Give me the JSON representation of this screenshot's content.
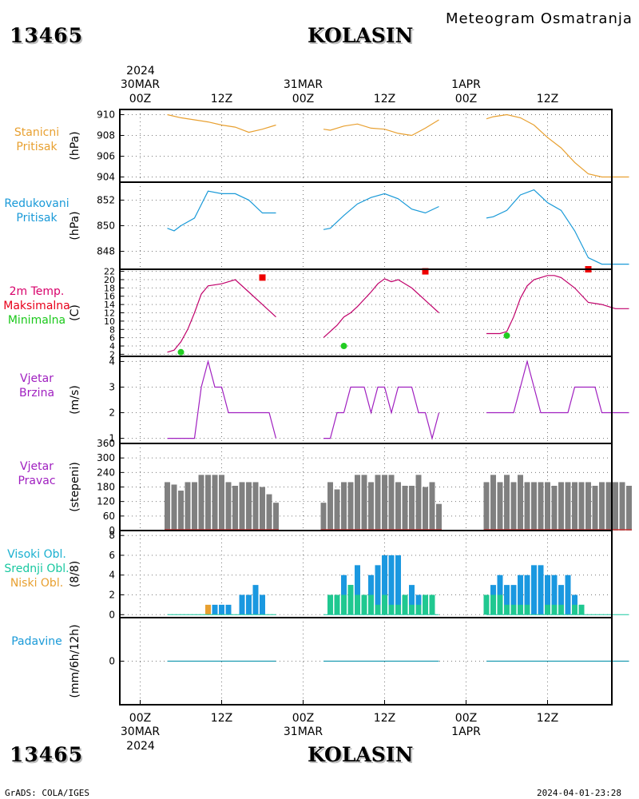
{
  "header": {
    "title": "Meteogram Osmatranja",
    "station_id": "13465",
    "station_name": "KOLASIN"
  },
  "footer": {
    "station_id": "13465",
    "station_name": "KOLASIN",
    "credit": "GrADS: COLA/IGES",
    "timestamp": "2024-04-01-23:28"
  },
  "time_axis": {
    "year": "2024",
    "days": [
      "30MAR",
      "31MAR",
      "1APR"
    ],
    "ticks": [
      "00Z",
      "12Z",
      "00Z",
      "12Z",
      "00Z",
      "12Z"
    ]
  },
  "chart_data": [
    {
      "id": "station-pressure",
      "type": "line",
      "label_lines": [
        "Stanicni",
        "Pritisak"
      ],
      "unit": "(hPa)",
      "color": "#e8a030",
      "ylim": [
        903.5,
        910.5
      ],
      "yticks": [
        "904",
        "906",
        "908",
        "910"
      ],
      "x_unit": "hours since 2024-03-30 00Z",
      "series": [
        {
          "x": [
            4,
            6,
            8,
            10,
            12,
            14,
            16,
            18,
            20
          ],
          "y": [
            910,
            909.7,
            909.5,
            909.3,
            909,
            908.8,
            908.3,
            908.6,
            909
          ]
        },
        {
          "x": [
            27,
            28,
            30,
            32,
            34,
            36,
            38,
            40,
            42,
            44
          ],
          "y": [
            908.6,
            908.5,
            908.9,
            909.1,
            908.7,
            908.6,
            908.2,
            908,
            908.7,
            909.5
          ]
        },
        {
          "x": [
            51,
            52,
            54,
            56,
            58,
            60,
            62,
            64,
            66,
            68,
            70,
            72
          ],
          "y": [
            909.6,
            909.8,
            910,
            909.7,
            909,
            907.8,
            906.8,
            905.4,
            904.3,
            904,
            904,
            904
          ]
        }
      ]
    },
    {
      "id": "reduced-pressure",
      "type": "line",
      "label_lines": [
        "Redukovani",
        "Pritisak"
      ],
      "unit": "(hPa)",
      "color": "#1a9ad8",
      "ylim": [
        846.6,
        853.4
      ],
      "yticks": [
        "848",
        "850",
        "852"
      ],
      "x_unit": "hours since 2024-03-30 00Z",
      "series": [
        {
          "x": [
            4,
            5,
            6,
            8,
            10,
            12,
            14,
            16,
            18,
            20
          ],
          "y": [
            849.8,
            849.6,
            850,
            850.6,
            852.7,
            852.5,
            852.5,
            852,
            851,
            851
          ]
        },
        {
          "x": [
            27,
            28,
            30,
            32,
            34,
            36,
            38,
            40,
            42,
            44
          ],
          "y": [
            849.7,
            849.8,
            850.8,
            851.7,
            852.2,
            852.5,
            852.1,
            851.3,
            851,
            851.5
          ]
        },
        {
          "x": [
            51,
            52,
            54,
            56,
            58,
            60,
            62,
            64,
            66,
            68,
            70,
            72
          ],
          "y": [
            850.6,
            850.7,
            851.2,
            852.4,
            852.8,
            851.8,
            851.2,
            849.6,
            847.5,
            847,
            847,
            847
          ]
        }
      ]
    },
    {
      "id": "temperature",
      "type": "line",
      "label_lines": [
        "2m Temp.",
        "Maksimalna",
        "Minimalna"
      ],
      "label_colors": [
        "#d8006a",
        "#e8001a",
        "#1ac81a"
      ],
      "unit": "(C)",
      "color": "#c0006a",
      "ylim": [
        1.5,
        22.5
      ],
      "yticks": [
        "2",
        "4",
        "6",
        "8",
        "10",
        "12",
        "14",
        "16",
        "18",
        "20",
        "22"
      ],
      "x_unit": "hours since 2024-03-30 00Z",
      "series": [
        {
          "x": [
            4,
            5,
            6,
            7,
            8,
            9,
            10,
            12,
            14,
            16,
            18,
            20
          ],
          "y": [
            2.5,
            3,
            5,
            8,
            12,
            16.5,
            18.5,
            19,
            20,
            17,
            14,
            11
          ]
        },
        {
          "x": [
            27,
            29,
            30,
            31,
            32,
            34,
            35,
            36,
            37,
            38,
            40,
            42,
            44
          ],
          "y": [
            6,
            9,
            11,
            12,
            13.5,
            17,
            19,
            20.2,
            19.5,
            20,
            18,
            15,
            12
          ]
        },
        {
          "x": [
            51,
            52,
            53,
            54,
            55,
            56,
            57,
            58,
            60,
            61,
            62,
            64,
            66,
            68,
            70,
            72
          ],
          "y": [
            7,
            7,
            7,
            7.5,
            11,
            15.5,
            18.5,
            20,
            21,
            21,
            20.5,
            18,
            14.5,
            14,
            13,
            13
          ]
        }
      ],
      "max_points": [
        {
          "x": 18,
          "y": 20.5
        },
        {
          "x": 42,
          "y": 22
        },
        {
          "x": 66,
          "y": 22.5
        }
      ],
      "min_points": [
        {
          "x": 6,
          "y": 2.5
        },
        {
          "x": 30,
          "y": 4
        },
        {
          "x": 54,
          "y": 6.5
        }
      ],
      "max_color": "#ee0000",
      "min_color": "#22cc22"
    },
    {
      "id": "wind-speed",
      "type": "line",
      "label_lines": [
        "Vjetar",
        "Brzina"
      ],
      "unit": "(m/s)",
      "color": "#a020c0",
      "ylim": [
        0.8,
        4.2
      ],
      "yticks": [
        "1",
        "2",
        "3",
        "4"
      ],
      "x_unit": "hours since 2024-03-30 00Z",
      "series": [
        {
          "x": [
            4,
            5,
            6,
            7,
            8,
            9,
            10,
            11,
            12,
            13,
            14,
            15,
            16,
            17,
            18,
            19,
            20
          ],
          "y": [
            1,
            1,
            1,
            1,
            1,
            3,
            4,
            3,
            3,
            2,
            2,
            2,
            2,
            2,
            2,
            2,
            1
          ]
        },
        {
          "x": [
            27,
            28,
            29,
            30,
            31,
            32,
            33,
            34,
            35,
            36,
            37,
            38,
            39,
            40,
            41,
            42,
            43,
            44
          ],
          "y": [
            1,
            1,
            2,
            2,
            3,
            3,
            3,
            2,
            3,
            3,
            2,
            3,
            3,
            3,
            2,
            2,
            1,
            2
          ]
        },
        {
          "x": [
            51,
            52,
            53,
            54,
            55,
            56,
            57,
            58,
            59,
            60,
            61,
            62,
            63,
            64,
            65,
            66,
            67,
            68,
            69,
            70,
            71,
            72
          ],
          "y": [
            2,
            2,
            2,
            2,
            2,
            3,
            4,
            3,
            2,
            2,
            2,
            2,
            2,
            3,
            3,
            3,
            3,
            2,
            2,
            2,
            2,
            2
          ]
        }
      ]
    },
    {
      "id": "wind-direction",
      "type": "bar",
      "label_lines": [
        "Vjetar",
        "Pravac"
      ],
      "unit": "(stepeni)",
      "color": "#808080",
      "label_color": "#a020c0",
      "baseline_color": "#cc3333",
      "ylim": [
        0,
        360
      ],
      "yticks": [
        "0",
        "60",
        "120",
        "180",
        "240",
        "300",
        "360"
      ],
      "x_unit": "hours since 2024-03-30 00Z",
      "x": [
        4,
        5,
        6,
        7,
        8,
        9,
        10,
        11,
        12,
        13,
        14,
        15,
        16,
        17,
        18,
        19,
        20,
        27,
        28,
        29,
        30,
        31,
        32,
        33,
        34,
        35,
        36,
        37,
        38,
        39,
        40,
        41,
        42,
        43,
        44,
        51,
        52,
        53,
        54,
        55,
        56,
        57,
        58,
        59,
        60,
        61,
        62,
        63,
        64,
        65,
        66,
        67,
        68,
        69,
        70,
        71,
        72
      ],
      "values": [
        200,
        190,
        165,
        200,
        200,
        230,
        230,
        230,
        230,
        200,
        185,
        200,
        200,
        200,
        180,
        150,
        115,
        115,
        200,
        170,
        200,
        200,
        230,
        230,
        200,
        230,
        230,
        230,
        200,
        185,
        185,
        230,
        180,
        200,
        110,
        200,
        230,
        200,
        230,
        200,
        230,
        200,
        200,
        200,
        200,
        185,
        200,
        200,
        200,
        200,
        200,
        185,
        200,
        200,
        200,
        200,
        185
      ]
    },
    {
      "id": "cloud-cover",
      "type": "bar",
      "label_lines": [
        "Visoki Obl.",
        "Srednji Obl.",
        "Niski Obl."
      ],
      "label_colors": [
        "#1ab0d0",
        "#18c8a0",
        "#e8a030"
      ],
      "unit": "(8/8)",
      "ylim": [
        -0.3,
        8.5
      ],
      "yticks": [
        "0",
        "2",
        "4",
        "6",
        "8"
      ],
      "x_unit": "hours since 2024-03-30 00Z",
      "x": [
        4,
        5,
        6,
        7,
        8,
        9,
        10,
        11,
        12,
        13,
        14,
        15,
        16,
        17,
        18,
        19,
        20,
        27,
        28,
        29,
        30,
        31,
        32,
        33,
        34,
        35,
        36,
        37,
        38,
        39,
        40,
        41,
        42,
        43,
        44,
        51,
        52,
        53,
        54,
        55,
        56,
        57,
        58,
        59,
        60,
        61,
        62,
        63,
        64,
        65,
        66,
        67,
        68,
        69,
        70,
        71,
        72
      ],
      "series": [
        {
          "name": "Visoki Obl.",
          "color": "#1a98e0",
          "values": [
            0,
            0,
            0,
            0,
            0,
            0,
            0,
            1,
            1,
            1,
            0,
            2,
            2,
            3,
            2,
            0,
            0,
            0,
            2,
            2,
            4,
            3,
            5,
            2,
            4,
            5,
            6,
            6,
            6,
            2,
            3,
            2,
            2,
            2,
            0,
            2,
            3,
            4,
            3,
            3,
            4,
            4,
            5,
            5,
            4,
            4,
            3,
            4,
            2,
            1,
            0,
            0,
            0,
            0,
            0,
            0,
            0
          ]
        },
        {
          "name": "Srednji Obl.",
          "color": "#20c890",
          "values": [
            0,
            0,
            0,
            0,
            0,
            0,
            0,
            0,
            0,
            0,
            0,
            0,
            0,
            0,
            0,
            0,
            0,
            0,
            2,
            2,
            2,
            3,
            2,
            2,
            2,
            1,
            2,
            1,
            1,
            2,
            1,
            1,
            2,
            2,
            0,
            2,
            2,
            2,
            1,
            1,
            1,
            1,
            0,
            0,
            1,
            1,
            1,
            0,
            1,
            1,
            0,
            0,
            0,
            0,
            0,
            0,
            0
          ]
        },
        {
          "name": "Niski Obl.",
          "color": "#e8a030",
          "values": [
            0,
            0,
            0,
            0,
            0,
            0,
            1,
            0,
            0,
            0,
            0,
            0,
            0,
            0,
            0,
            0,
            0,
            0,
            0,
            0,
            0,
            0,
            0,
            0,
            0,
            0,
            0,
            0,
            0,
            0,
            0,
            0,
            0,
            0,
            0,
            0,
            0,
            0,
            0,
            0,
            0,
            0,
            0,
            0,
            0,
            0,
            0,
            0,
            0,
            0,
            0,
            0,
            0,
            0,
            0,
            0,
            0
          ]
        }
      ]
    },
    {
      "id": "precipitation",
      "type": "line",
      "label_lines": [
        "Padavine"
      ],
      "label_color": "#1a9ad8",
      "unit": "(mm/6h/12h)",
      "color": "#1a9ab0",
      "ylim": [
        -4,
        4
      ],
      "yticks": [
        "0"
      ],
      "x_unit": "hours since 2024-03-30 00Z",
      "series": [
        {
          "x": [
            4,
            20
          ],
          "y": [
            0,
            0
          ]
        },
        {
          "x": [
            27,
            44
          ],
          "y": [
            0,
            0
          ]
        },
        {
          "x": [
            51,
            72
          ],
          "y": [
            0,
            0
          ]
        }
      ]
    }
  ]
}
